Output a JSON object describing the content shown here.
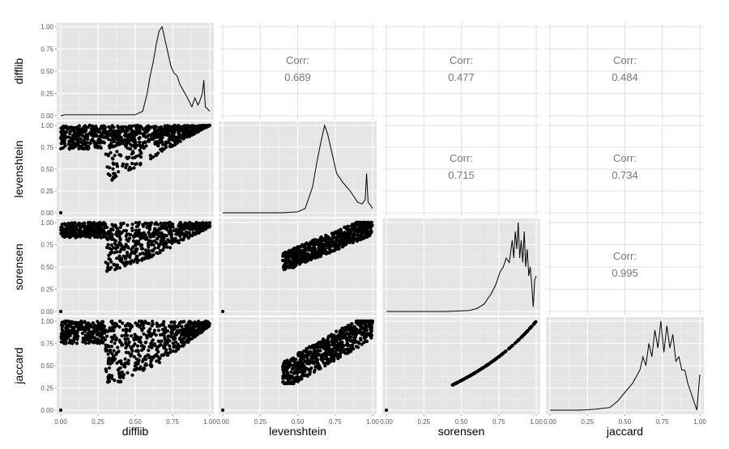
{
  "chart_data": {
    "type": "scatter-matrix",
    "variables": [
      "difflib",
      "levenshtein",
      "sorensen",
      "jaccard"
    ],
    "tick_labels": [
      "0.00",
      "0.25",
      "0.50",
      "0.75",
      "1.00"
    ],
    "axis_range": [
      0,
      1
    ],
    "grid": true,
    "correlations": [
      {
        "row": "difflib",
        "col": "levenshtein",
        "label": "Corr:",
        "value": "0.689"
      },
      {
        "row": "difflib",
        "col": "sorensen",
        "label": "Corr:",
        "value": "0.477"
      },
      {
        "row": "difflib",
        "col": "jaccard",
        "label": "Corr:",
        "value": "0.484"
      },
      {
        "row": "levenshtein",
        "col": "sorensen",
        "label": "Corr:",
        "value": "0.715"
      },
      {
        "row": "levenshtein",
        "col": "jaccard",
        "label": "Corr:",
        "value": "0.734"
      },
      {
        "row": "sorensen",
        "col": "jaccard",
        "label": "Corr:",
        "value": "0.995"
      }
    ],
    "densities": {
      "difflib": {
        "x": [
          0,
          0.03,
          0.05,
          0.1,
          0.2,
          0.3,
          0.4,
          0.5,
          0.55,
          0.58,
          0.6,
          0.62,
          0.64,
          0.66,
          0.68,
          0.7,
          0.72,
          0.74,
          0.76,
          0.78,
          0.8,
          0.85,
          0.88,
          0.9,
          0.92,
          0.93,
          0.94,
          0.95,
          0.96,
          0.97,
          1.0
        ],
        "y": [
          0,
          0.01,
          0.01,
          0.01,
          0.01,
          0.01,
          0.01,
          0.01,
          0.05,
          0.25,
          0.45,
          0.6,
          0.8,
          0.95,
          1.0,
          0.85,
          0.7,
          0.55,
          0.48,
          0.45,
          0.35,
          0.2,
          0.1,
          0.2,
          0.12,
          0.15,
          0.2,
          0.25,
          0.4,
          0.1,
          0.05
        ]
      },
      "levenshtein": {
        "x": [
          0,
          0.2,
          0.3,
          0.4,
          0.5,
          0.55,
          0.6,
          0.63,
          0.66,
          0.68,
          0.7,
          0.72,
          0.74,
          0.76,
          0.8,
          0.85,
          0.9,
          0.93,
          0.95,
          0.96,
          0.97,
          0.98,
          1.0
        ],
        "y": [
          0,
          0,
          0,
          0,
          0.01,
          0.05,
          0.3,
          0.6,
          0.85,
          1.0,
          0.9,
          0.75,
          0.6,
          0.45,
          0.35,
          0.25,
          0.12,
          0.1,
          0.15,
          0.45,
          0.12,
          0.1,
          0.05
        ]
      },
      "sorensen": {
        "x": [
          0,
          0.2,
          0.4,
          0.55,
          0.6,
          0.65,
          0.7,
          0.73,
          0.76,
          0.78,
          0.8,
          0.82,
          0.84,
          0.85,
          0.86,
          0.87,
          0.88,
          0.89,
          0.9,
          0.91,
          0.92,
          0.93,
          0.94,
          0.95,
          0.96,
          0.97,
          0.98,
          0.99,
          1.0
        ],
        "y": [
          0,
          0,
          0,
          0.01,
          0.03,
          0.08,
          0.2,
          0.3,
          0.45,
          0.5,
          0.6,
          0.55,
          0.8,
          0.6,
          0.9,
          0.7,
          1.0,
          0.6,
          0.8,
          0.55,
          0.9,
          0.5,
          0.7,
          0.4,
          0.5,
          0.3,
          0.05,
          0.35,
          0.4
        ]
      },
      "jaccard": {
        "x": [
          0,
          0.2,
          0.3,
          0.4,
          0.45,
          0.5,
          0.55,
          0.6,
          0.62,
          0.64,
          0.66,
          0.68,
          0.7,
          0.72,
          0.74,
          0.76,
          0.78,
          0.8,
          0.82,
          0.84,
          0.86,
          0.88,
          0.9,
          0.92,
          0.94,
          0.96,
          0.98,
          1.0
        ],
        "y": [
          0,
          0,
          0.01,
          0.03,
          0.1,
          0.2,
          0.3,
          0.45,
          0.6,
          0.5,
          0.75,
          0.6,
          0.9,
          0.7,
          1.0,
          0.65,
          0.95,
          0.7,
          0.85,
          0.55,
          0.6,
          0.45,
          0.45,
          0.3,
          0.2,
          0.1,
          0.0,
          0.4
        ]
      }
    },
    "scatter_regions": {
      "levenshtein_vs_difflib": "dense cloud y 0.75–1.0 across x 0–1; lower triangular edge from (0.35,0.37) to (1,1); isolated point at (0,0)",
      "sorensen_vs_difflib": "dense band y 0.85–1.0 for x 0–0.3; cloud x 0.3–1, lower edge from (0.35,0.45) rising to (1,1); point at (0,0)",
      "jaccard_vs_difflib": "dense band y 0.75–1.0 for x 0–0.3; cloud x 0.3–1, lower edge from (0.35,0.3) to (1,1); point at (0,0)",
      "sorensen_vs_levenshtein": "elliptical cloud x 0.4–1.0, y 0.45–1.0; point at (0,0)",
      "jaccard_vs_levenshtein": "elliptical cloud x 0.4–1.0, y 0.3–1.0; point at (0,0)",
      "jaccard_vs_sorensen": "monotonic curve from (0.44,0.28) to (1,1); point at (0,0)"
    }
  }
}
